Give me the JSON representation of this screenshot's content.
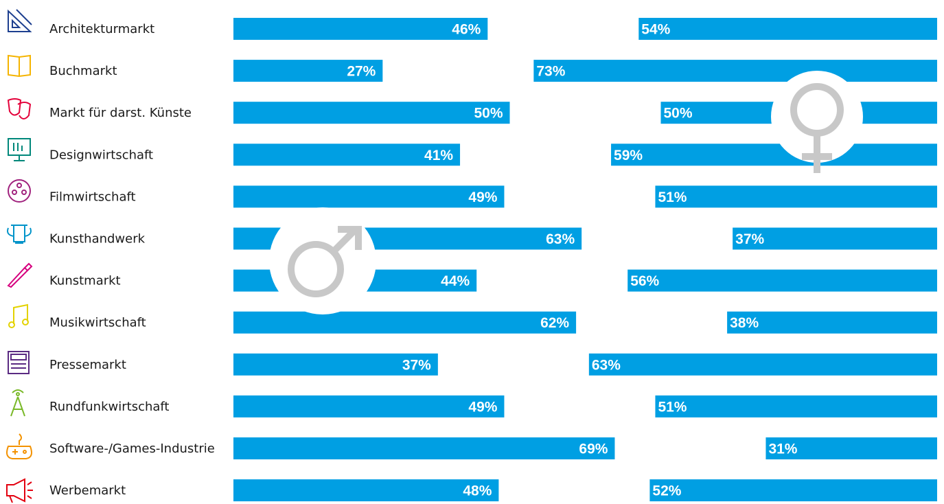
{
  "chart_data": {
    "type": "bar",
    "orientation": "horizontal",
    "categories": [
      "Architekturmarkt",
      "Buchmarkt",
      "Markt für darst. Künste",
      "Designwirtschaft",
      "Filmwirtschaft",
      "Kunsthandwerk",
      "Kunstmarkt",
      "Musikwirtschaft",
      "Pressemarkt",
      "Rundfunkwirtschaft",
      "Software-/Games-Industrie",
      "Werbemarkt"
    ],
    "series": [
      {
        "color": "#009fe3",
        "values": [
          46,
          27,
          50,
          41,
          49,
          63,
          44,
          62,
          37,
          49,
          69,
          48
        ],
        "value_labels": [
          "46%",
          "27%",
          "50%",
          "41%",
          "49%",
          "63%",
          "44%",
          "62%",
          "37%",
          "49%",
          "69%",
          "48%"
        ]
      },
      {
        "color": "#009fe3",
        "values": [
          54,
          73,
          50,
          59,
          51,
          37,
          56,
          38,
          63,
          51,
          31,
          52
        ],
        "value_labels": [
          "54%",
          "73%",
          "50%",
          "59%",
          "51%",
          "37%",
          "56%",
          "38%",
          "63%",
          "51%",
          "31%",
          "52%"
        ]
      }
    ]
  }
}
